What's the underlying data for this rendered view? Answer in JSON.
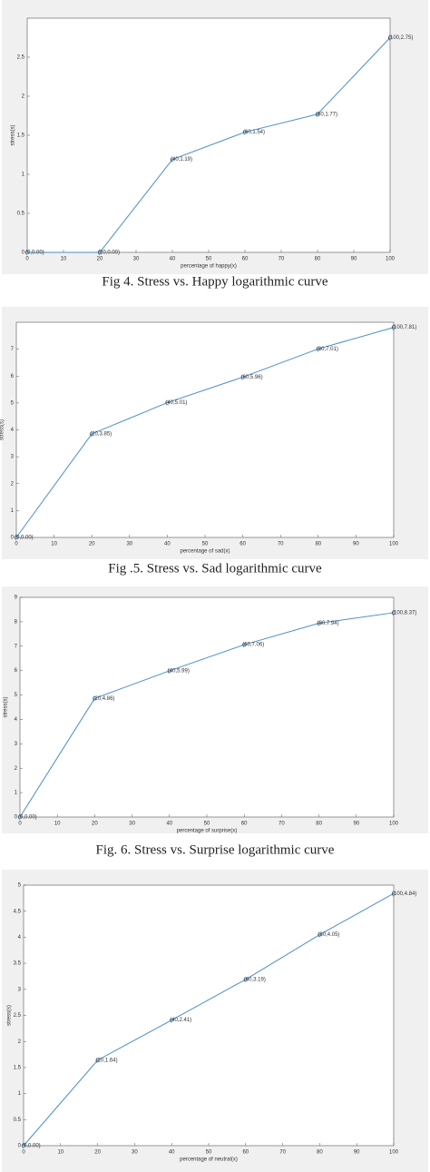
{
  "chart_data": [
    {
      "type": "line",
      "caption": "Fig 4. Stress vs. Happy logarithmic curve",
      "xlabel": "percentage of happy(x)",
      "ylabel": "stress(s)",
      "color": "#4a8fc6",
      "x": [
        0,
        20,
        40,
        60,
        80,
        100
      ],
      "values": [
        0,
        0,
        1.19,
        1.54,
        1.77,
        2.75
      ],
      "value_labels": [
        "(0,0.00)",
        "(20,0.00)",
        "(40,1.19)",
        "(60,1.54)",
        "(80,1.77)",
        "(100,2.75)"
      ],
      "xlim": [
        0,
        100
      ],
      "ylim": [
        0,
        3
      ],
      "xticks": [
        0,
        10,
        20,
        30,
        40,
        50,
        60,
        70,
        80,
        90,
        100
      ],
      "yticks": [
        0,
        0.5,
        1,
        1.5,
        2,
        2.5
      ]
    },
    {
      "type": "line",
      "caption": "Fig .5. Stress vs. Sad logarithmic curve",
      "xlabel": "percentage of sad(x)",
      "ylabel": "stress(s)",
      "color": "#4a8fc6",
      "x": [
        0,
        20,
        40,
        60,
        80,
        100
      ],
      "values": [
        0,
        3.85,
        5.01,
        5.96,
        7.01,
        7.81
      ],
      "value_labels": [
        "(0,0.00)",
        "(20,3.85)",
        "(40,5.01)",
        "(60,5.96)",
        "(80,7.01)",
        "(100,7.81)"
      ],
      "xlim": [
        0,
        100
      ],
      "ylim": [
        0,
        8
      ],
      "xticks": [
        0,
        10,
        20,
        30,
        40,
        50,
        60,
        70,
        80,
        90,
        100
      ],
      "yticks": [
        0,
        1,
        2,
        3,
        4,
        5,
        6,
        7
      ]
    },
    {
      "type": "line",
      "caption": "Fig. 6. Stress vs. Surprise logarithmic curve",
      "xlabel": "percentage of surprise(x)",
      "ylabel": "stress(s)",
      "color": "#4a8fc6",
      "x": [
        0,
        20,
        40,
        60,
        80,
        100
      ],
      "values": [
        0,
        4.86,
        5.99,
        7.06,
        7.94,
        8.37
      ],
      "value_labels": [
        "(0,0.00)",
        "(20,4.86)",
        "(40,5.99)",
        "(60,7.06)",
        "(80,7.94)",
        "(100,8.37)"
      ],
      "xlim": [
        0,
        100
      ],
      "ylim": [
        0,
        9
      ],
      "xticks": [
        0,
        10,
        20,
        30,
        40,
        50,
        60,
        70,
        80,
        90,
        100
      ],
      "yticks": [
        0,
        1,
        2,
        3,
        4,
        5,
        6,
        7,
        8,
        9
      ]
    },
    {
      "type": "line",
      "xlabel": "percentage of neutral(x)",
      "ylabel": "stress(s)",
      "color": "#4a8fc6",
      "x": [
        0,
        20,
        40,
        60,
        80,
        100
      ],
      "values": [
        0,
        1.64,
        2.41,
        3.19,
        4.05,
        4.84
      ],
      "value_labels": [
        "(0,0.00)",
        "(20,1.64)",
        "(40,2.41)",
        "(60,3.19)",
        "(80,4.05)",
        "(100,4.84)"
      ],
      "xlim": [
        0,
        100
      ],
      "ylim": [
        0,
        5
      ],
      "xticks": [
        0,
        10,
        20,
        30,
        40,
        50,
        60,
        70,
        80,
        90,
        100
      ],
      "yticks": [
        0,
        0.5,
        1,
        1.5,
        2,
        2.5,
        3,
        3.5,
        4,
        4.5,
        5
      ]
    }
  ]
}
